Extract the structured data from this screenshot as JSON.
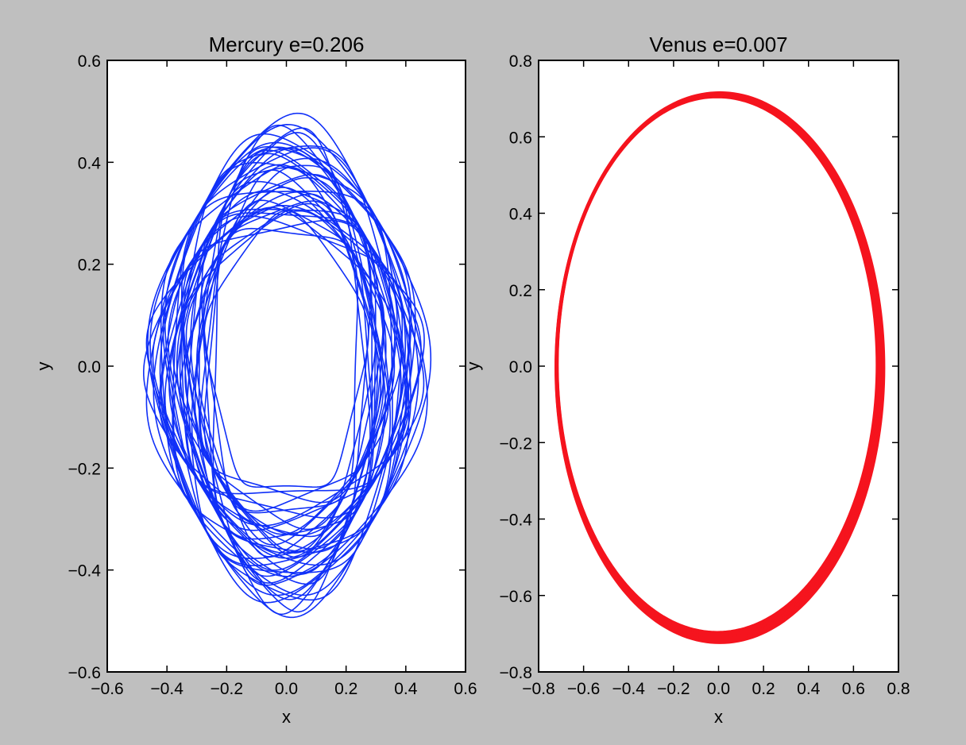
{
  "chart_data": [
    {
      "type": "line",
      "title": "Mercury e=0.206",
      "xlabel": "x",
      "ylabel": "y",
      "xlim": [
        -0.6,
        0.6
      ],
      "ylim": [
        -0.6,
        0.6
      ],
      "xticks": [
        -0.6,
        -0.4,
        -0.2,
        0.0,
        0.2,
        0.4,
        0.6
      ],
      "yticks": [
        -0.6,
        -0.4,
        -0.2,
        0.0,
        0.2,
        0.4,
        0.6
      ],
      "color": "#1030f8",
      "grid": false,
      "orbit": {
        "description_values": "precessing ellipse rosette",
        "outer_extent_x": 0.47,
        "outer_extent_y": 0.47,
        "inner_extent_x": 0.28,
        "inner_extent_y": 0.28,
        "ellipse_semi_axes_x": [
          0.26,
          0.46
        ],
        "ellipse_semi_axes_y": [
          0.27,
          0.47
        ]
      }
    },
    {
      "type": "line",
      "title": "Venus e=0.007",
      "xlabel": "x",
      "ylabel": "y",
      "xlim": [
        -0.8,
        0.8
      ],
      "ylim": [
        -0.8,
        0.8
      ],
      "xticks": [
        -0.8,
        -0.6,
        -0.4,
        -0.2,
        0.0,
        0.2,
        0.4,
        0.6,
        0.8
      ],
      "yticks": [
        -0.8,
        -0.6,
        -0.4,
        -0.2,
        0.0,
        0.2,
        0.4,
        0.6,
        0.8
      ],
      "color": "#f5141e",
      "grid": false,
      "orbit": {
        "description_values": "near-circular orbit band",
        "semi_axis_x_range": [
          0.71,
          0.73
        ],
        "semi_axis_y_range": [
          0.7,
          0.72
        ]
      }
    }
  ]
}
